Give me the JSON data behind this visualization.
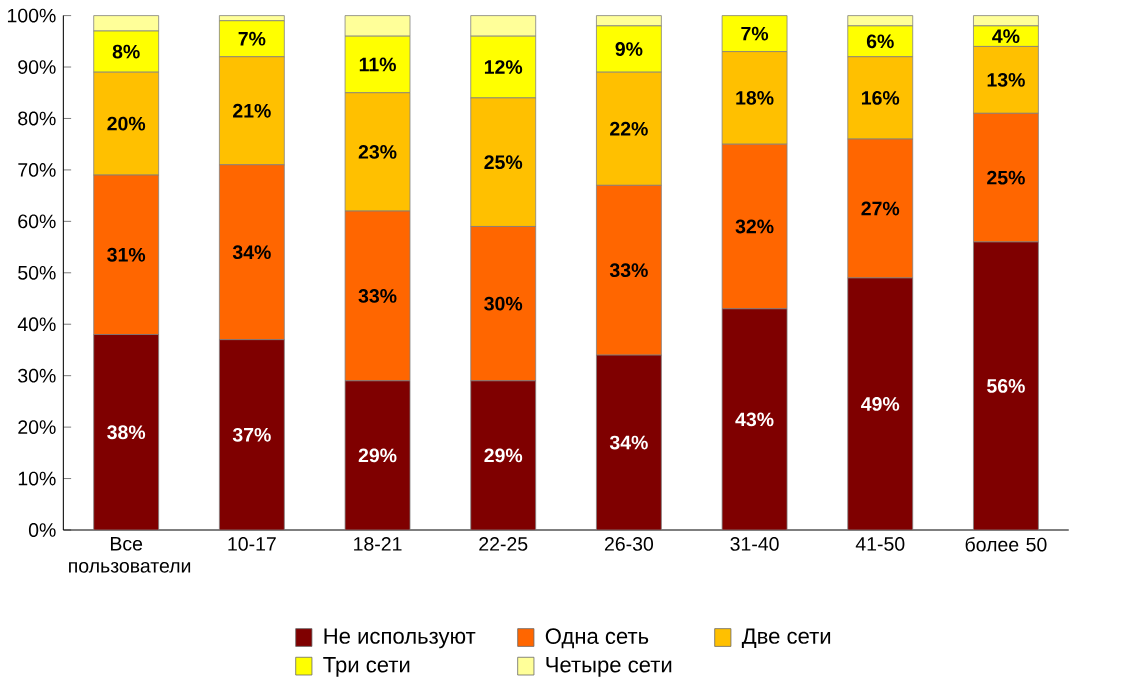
{
  "chart_data": {
    "type": "bar",
    "stacked": true,
    "legend": "bottom",
    "categories": [
      "Все пользователи",
      "10-17",
      "18-21",
      "22-25",
      "26-30",
      "31-40",
      "41-50",
      "более 50"
    ],
    "ylim": [
      0,
      100
    ],
    "yticks": [
      {
        "value": 0,
        "label": "0%"
      },
      {
        "value": 10,
        "label": "10%"
      },
      {
        "value": 20,
        "label": "20%"
      },
      {
        "value": 30,
        "label": "30%"
      },
      {
        "value": 40,
        "label": "40%"
      },
      {
        "value": 50,
        "label": "50%"
      },
      {
        "value": 60,
        "label": "60%"
      },
      {
        "value": 70,
        "label": "70%"
      },
      {
        "value": 80,
        "label": "80%"
      },
      {
        "value": 90,
        "label": "90%"
      },
      {
        "value": 100,
        "label": "100%"
      }
    ],
    "series": [
      {
        "name": "Не используют",
        "color": "#7f0000",
        "values": [
          38,
          37,
          29,
          29,
          34,
          43,
          49,
          56
        ],
        "value_labels": [
          "38%",
          "37%",
          "29%",
          "29%",
          "34%",
          "43%",
          "49%",
          "56%"
        ]
      },
      {
        "name": "Одна сеть",
        "color": "#ff6600",
        "values": [
          31,
          34,
          33,
          30,
          33,
          32,
          27,
          25
        ],
        "value_labels": [
          "31%",
          "34%",
          "33%",
          "30%",
          "33%",
          "32%",
          "27%",
          "25%"
        ]
      },
      {
        "name": "Две сети",
        "color": "#ffc000",
        "values": [
          20,
          21,
          23,
          25,
          22,
          18,
          16,
          13
        ],
        "value_labels": [
          "20%",
          "21%",
          "23%",
          "25%",
          "22%",
          "18%",
          "16%",
          "13%"
        ]
      },
      {
        "name": "Три сети",
        "color": "#ffff00",
        "values": [
          8,
          7,
          11,
          12,
          9,
          7,
          6,
          4
        ],
        "value_labels": [
          "8%",
          "7%",
          "11%",
          "12%",
          "9%",
          "7%",
          "6%",
          "4%"
        ]
      },
      {
        "name": "Четыре сети",
        "color": "#ffff99",
        "values": [
          3,
          1,
          4,
          4,
          2,
          0,
          2,
          2
        ]
      }
    ]
  }
}
